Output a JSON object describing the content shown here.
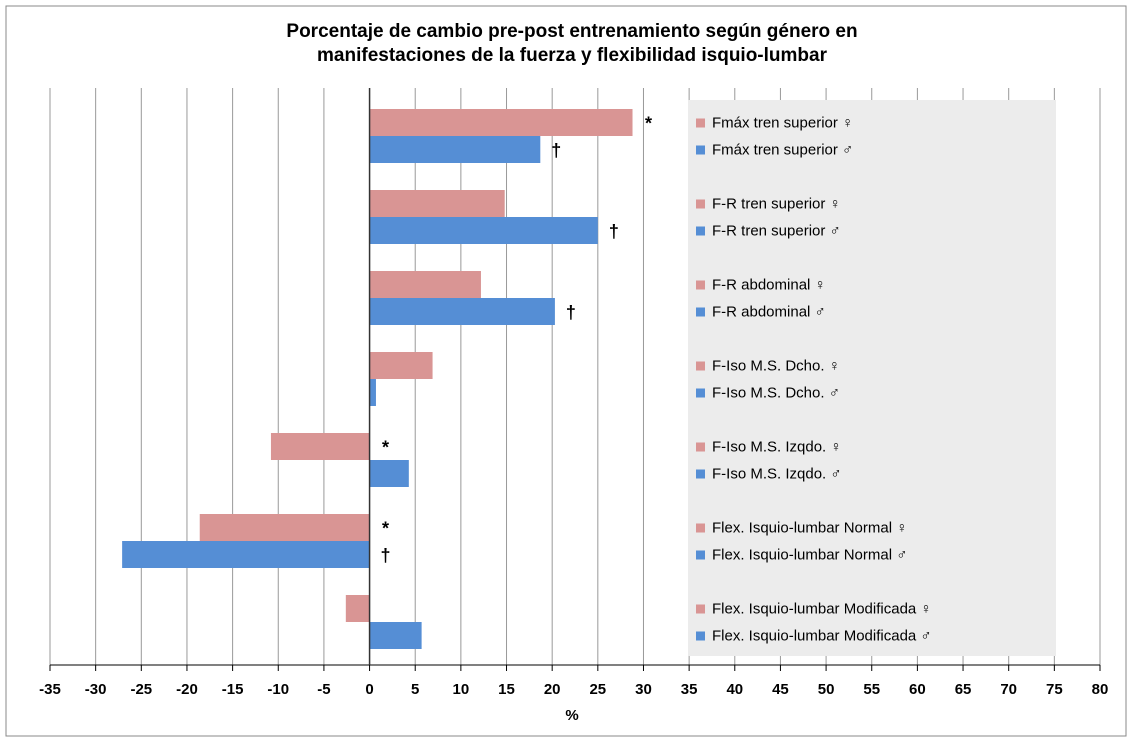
{
  "chart_data": {
    "type": "hbar",
    "title": [
      "Porcentaje de cambio pre-post entrenamiento según género en",
      "manifestaciones de la fuerza y flexibilidad isquio-lumbar"
    ],
    "x_label": "%",
    "categories": [
      "Fmáx tren superior ♀",
      "Fmáx tren superior ♂",
      "F-R tren superior ♀",
      "F-R tren superior ♂",
      "F-R abdominal ♀",
      "F-R abdominal ♂",
      "F-Iso M.S. Dcho. ♀",
      "F-Iso M.S. Dcho. ♂",
      "F-Iso M.S. Izqdo. ♀",
      "F-Iso M.S. Izqdo. ♂",
      "Flex. Isquio-lumbar Normal ♀",
      "Flex. Isquio-lumbar Normal ♂",
      "Flex. Isquio-lumbar Modificada ♀",
      "Flex. Isquio-lumbar Modificada ♂"
    ],
    "values": [
      28.8,
      18.7,
      14.8,
      25.0,
      12.2,
      20.3,
      6.9,
      0.7,
      -10.8,
      4.3,
      -18.6,
      -27.1,
      -2.6,
      5.7
    ],
    "colors": [
      "#d99594",
      "#558ed5",
      "#d99594",
      "#558ed5",
      "#d99594",
      "#558ed5",
      "#d99594",
      "#558ed5",
      "#d99594",
      "#558ed5",
      "#d99594",
      "#558ed5",
      "#d99594",
      "#558ed5"
    ],
    "annotations": [
      "*",
      "†",
      null,
      "†",
      null,
      "†",
      null,
      null,
      "*",
      null,
      "*",
      "†",
      null,
      null
    ],
    "xlim": [
      -35,
      80
    ],
    "xticks": [
      -35,
      -30,
      -25,
      -20,
      -15,
      -10,
      -5,
      0,
      5,
      10,
      15,
      20,
      25,
      30,
      35,
      40,
      45,
      50,
      55,
      60,
      65,
      70,
      75,
      80
    ],
    "grid": true
  }
}
